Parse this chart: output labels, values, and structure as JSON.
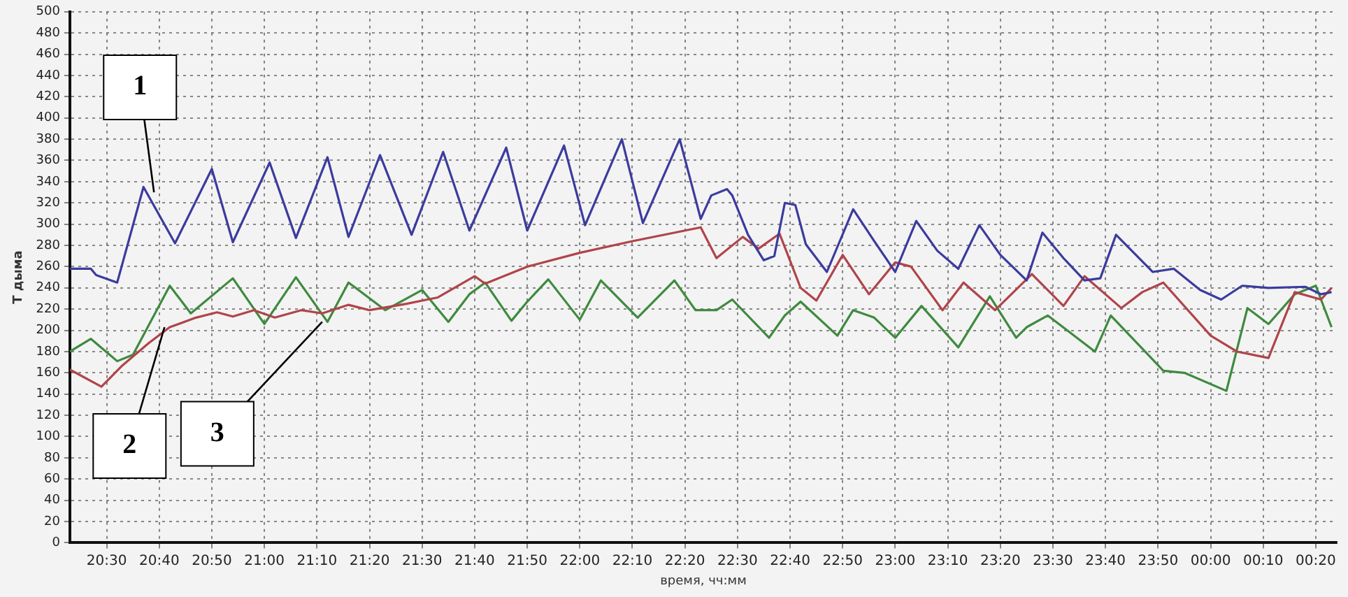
{
  "chart_data": {
    "type": "line",
    "xlabel": "время, чч:мм",
    "ylabel": "T дыма",
    "xlim": [
      "--01-01T20:23",
      "--01-02T00:24"
    ],
    "ylim": [
      0,
      500
    ],
    "xticks": [
      {
        "value": "--01-01T20:30",
        "label": "20:30"
      },
      {
        "value": "--01-01T20:40",
        "label": "20:40"
      },
      {
        "value": "--01-01T20:50",
        "label": "20:50"
      },
      {
        "value": "--01-01T21:00",
        "label": "21:00"
      },
      {
        "value": "--01-01T21:10",
        "label": "21:10"
      },
      {
        "value": "--01-01T21:20",
        "label": "21:20"
      },
      {
        "value": "--01-01T21:30",
        "label": "21:30"
      },
      {
        "value": "--01-01T21:40",
        "label": "21:40"
      },
      {
        "value": "--01-01T21:50",
        "label": "21:50"
      },
      {
        "value": "--01-01T22:00",
        "label": "22:00"
      },
      {
        "value": "--01-01T22:10",
        "label": "22:10"
      },
      {
        "value": "--01-01T22:20",
        "label": "22:20"
      },
      {
        "value": "--01-01T22:30",
        "label": "22:30"
      },
      {
        "value": "--01-01T22:40",
        "label": "22:40"
      },
      {
        "value": "--01-01T22:50",
        "label": "22:50"
      },
      {
        "value": "--01-01T23:00",
        "label": "23:00"
      },
      {
        "value": "--01-01T23:10",
        "label": "23:10"
      },
      {
        "value": "--01-01T23:20",
        "label": "23:20"
      },
      {
        "value": "--01-01T23:30",
        "label": "23:30"
      },
      {
        "value": "--01-01T23:40",
        "label": "23:40"
      },
      {
        "value": "--01-01T23:50",
        "label": "23:50"
      },
      {
        "value": "--01-02T00:00",
        "label": "00:00"
      },
      {
        "value": "--01-02T00:10",
        "label": "00:10"
      },
      {
        "value": "--01-02T00:20",
        "label": "00:20"
      }
    ],
    "yticks": [
      0,
      20,
      40,
      60,
      80,
      100,
      120,
      140,
      160,
      180,
      200,
      220,
      240,
      260,
      280,
      300,
      320,
      340,
      360,
      380,
      400,
      420,
      440,
      460,
      480,
      500
    ],
    "grid": true,
    "line_style": "solid",
    "marker": "none",
    "series": [
      {
        "color": "#3b3b9e",
        "x": [
          "--01-01T20:23",
          "--01-01T20:27",
          "--01-01T20:28",
          "--01-01T20:32",
          "--01-01T20:37",
          "--01-01T20:43",
          "--01-01T20:50",
          "--01-01T20:54",
          "--01-01T21:01",
          "--01-01T21:06",
          "--01-01T21:12",
          "--01-01T21:16",
          "--01-01T21:22",
          "--01-01T21:28",
          "--01-01T21:34",
          "--01-01T21:39",
          "--01-01T21:46",
          "--01-01T21:50",
          "--01-01T21:57",
          "--01-01T22:01",
          "--01-01T22:08",
          "--01-01T22:12",
          "--01-01T22:19",
          "--01-01T22:23",
          "--01-01T22:25",
          "--01-01T22:28",
          "--01-01T22:29",
          "--01-01T22:32",
          "--01-01T22:35",
          "--01-01T22:37",
          "--01-01T22:39",
          "--01-01T22:41",
          "--01-01T22:43",
          "--01-01T22:47",
          "--01-01T22:52",
          "--01-01T22:56",
          "--01-01T23:00",
          "--01-01T23:04",
          "--01-01T23:08",
          "--01-01T23:12",
          "--01-01T23:16",
          "--01-01T23:20",
          "--01-01T23:25",
          "--01-01T23:28",
          "--01-01T23:32",
          "--01-01T23:36",
          "--01-01T23:39",
          "--01-01T23:42",
          "--01-01T23:49",
          "--01-01T23:53",
          "--01-01T23:58",
          "--01-02T00:02",
          "--01-02T00:06",
          "--01-02T00:11",
          "--01-02T00:18",
          "--01-02T00:21",
          "--01-02T00:23"
        ],
        "values": [
          258,
          258,
          252,
          245,
          335,
          282,
          352,
          283,
          358,
          287,
          363,
          288,
          365,
          290,
          368,
          294,
          372,
          294,
          374,
          299,
          380,
          301,
          380,
          305,
          327,
          333,
          327,
          290,
          266,
          270,
          320,
          318,
          281,
          255,
          314,
          284,
          255,
          303,
          275,
          258,
          299,
          271,
          247,
          292,
          268,
          247,
          249,
          290,
          255,
          258,
          238,
          229,
          242,
          240,
          241,
          234,
          236
        ]
      },
      {
        "color": "#b0444a",
        "x": [
          "--01-01T20:23",
          "--01-01T20:29",
          "--01-01T20:33",
          "--01-01T20:38",
          "--01-01T20:42",
          "--01-01T20:47",
          "--01-01T20:51",
          "--01-01T20:54",
          "--01-01T20:58",
          "--01-01T21:02",
          "--01-01T21:07",
          "--01-01T21:11",
          "--01-01T21:16",
          "--01-01T21:20",
          "--01-01T21:27",
          "--01-01T21:31",
          "--01-01T21:33",
          "--01-01T21:40",
          "--01-01T21:42",
          "--01-01T21:50",
          "--01-01T22:00",
          "--01-01T22:10",
          "--01-01T22:23",
          "--01-01T22:26",
          "--01-01T22:31",
          "--01-01T22:34",
          "--01-01T22:38",
          "--01-01T22:42",
          "--01-01T22:45",
          "--01-01T22:50",
          "--01-01T22:55",
          "--01-01T23:00",
          "--01-01T23:03",
          "--01-01T23:09",
          "--01-01T23:13",
          "--01-01T23:19",
          "--01-01T23:26",
          "--01-01T23:32",
          "--01-01T23:36",
          "--01-01T23:43",
          "--01-01T23:47",
          "--01-01T23:51",
          "--01-02T00:00",
          "--01-02T00:05",
          "--01-02T00:11",
          "--01-02T00:16",
          "--01-02T00:21",
          "--01-02T00:23"
        ],
        "values": [
          163,
          147,
          167,
          188,
          203,
          212,
          217,
          213,
          219,
          212,
          219,
          216,
          224,
          219,
          225,
          229,
          231,
          251,
          244,
          260,
          273,
          284,
          297,
          268,
          288,
          277,
          291,
          240,
          228,
          271,
          234,
          264,
          260,
          219,
          245,
          219,
          253,
          223,
          251,
          221,
          236,
          245,
          195,
          180,
          174,
          236,
          229,
          240
        ]
      },
      {
        "color": "#3f8a3f",
        "x": [
          "--01-01T20:23",
          "--01-01T20:27",
          "--01-01T20:32",
          "--01-01T20:35",
          "--01-01T20:42",
          "--01-01T20:46",
          "--01-01T20:54",
          "--01-01T21:00",
          "--01-01T21:06",
          "--01-01T21:12",
          "--01-01T21:16",
          "--01-01T21:23",
          "--01-01T21:30",
          "--01-01T21:35",
          "--01-01T21:39",
          "--01-01T21:42",
          "--01-01T21:47",
          "--01-01T21:50",
          "--01-01T21:54",
          "--01-01T22:00",
          "--01-01T22:04",
          "--01-01T22:11",
          "--01-01T22:18",
          "--01-01T22:22",
          "--01-01T22:26",
          "--01-01T22:29",
          "--01-01T22:36",
          "--01-01T22:39",
          "--01-01T22:42",
          "--01-01T22:49",
          "--01-01T22:52",
          "--01-01T22:56",
          "--01-01T23:00",
          "--01-01T23:05",
          "--01-01T23:12",
          "--01-01T23:18",
          "--01-01T23:23",
          "--01-01T23:25",
          "--01-01T23:29",
          "--01-01T23:38",
          "--01-01T23:41",
          "--01-01T23:51",
          "--01-01T23:55",
          "--01-02T00:03",
          "--01-02T00:07",
          "--01-02T00:11",
          "--01-02T00:16",
          "--01-02T00:20",
          "--01-02T00:23"
        ],
        "values": [
          180,
          192,
          171,
          177,
          242,
          216,
          249,
          206,
          250,
          208,
          245,
          219,
          238,
          208,
          234,
          245,
          209,
          227,
          248,
          210,
          247,
          212,
          247,
          219,
          219,
          229,
          193,
          214,
          227,
          195,
          219,
          212,
          193,
          223,
          184,
          232,
          193,
          203,
          214,
          180,
          214,
          162,
          160,
          143,
          221,
          206,
          234,
          242,
          203
        ]
      }
    ],
    "annotations": [
      {
        "text": "1",
        "x": "--01-01T20:39",
        "y": 330
      },
      {
        "text": "2",
        "x": "--01-01T20:41",
        "y": 203
      },
      {
        "text": "3",
        "x": "--01-01T21:11",
        "y": 208
      }
    ]
  }
}
